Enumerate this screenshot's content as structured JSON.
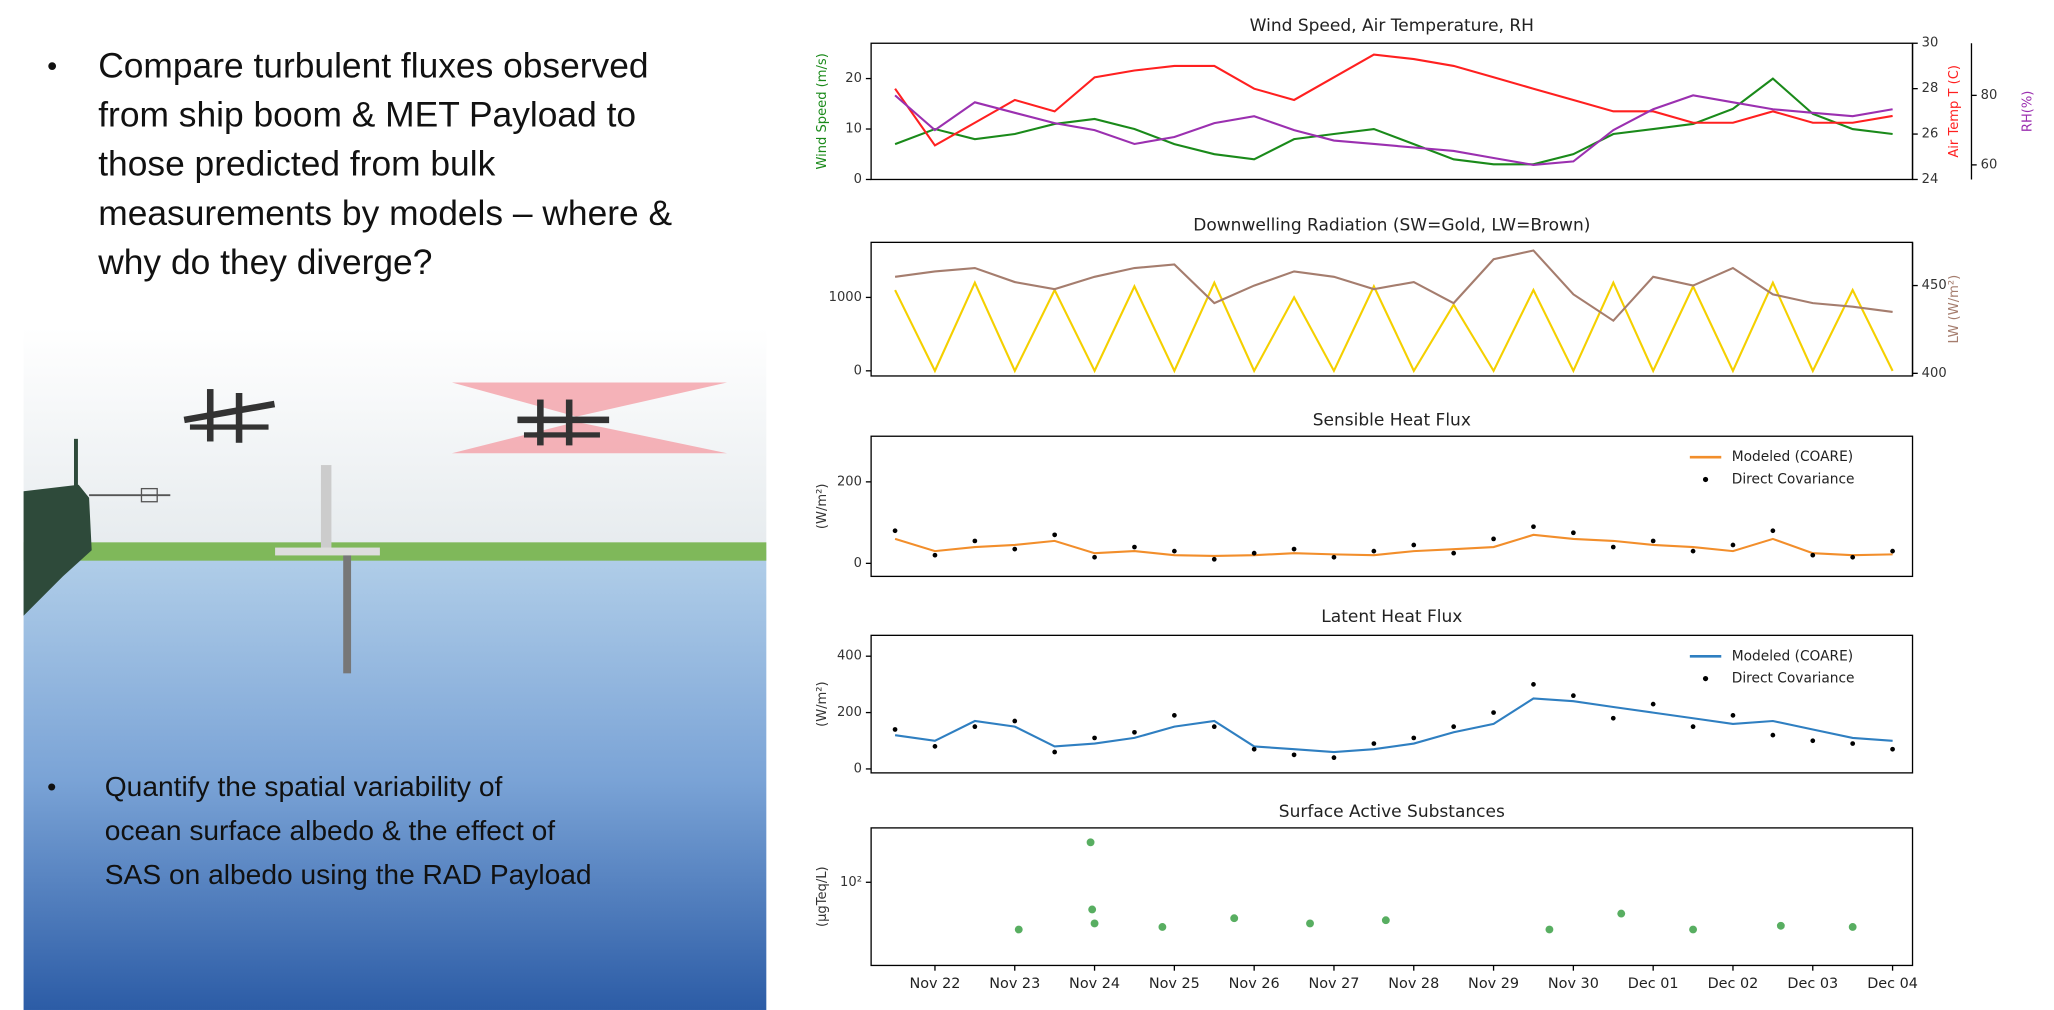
{
  "slide": {
    "bullets": [
      {
        "lines": [
          "Compare turbulent fluxes observed",
          "from ship boom & MET Payload to",
          "those predicted from bulk",
          "measurements by models – where &",
          "why do they diverge?"
        ]
      },
      {
        "lines": [
          "Quantify the spatial variability of",
          "ocean surface albedo & the effect of",
          "SAS on albedo using the RAD Payload"
        ]
      }
    ]
  },
  "chart_data": [
    {
      "type": "line",
      "title": "Wind Speed, Air Temperature, RH",
      "x": [
        -0.5,
        0,
        0.5,
        1,
        1.5,
        2,
        2.5,
        3,
        3.5,
        4,
        4.5,
        5,
        5.5,
        6,
        6.5,
        7,
        7.5,
        8,
        8.5,
        9,
        9.5,
        10,
        10.5,
        11,
        11.5,
        12
      ],
      "xlim": [
        -0.8,
        12.25
      ],
      "ylim": [
        0,
        27
      ],
      "yticks": [
        0,
        10,
        20
      ],
      "ylabel": "Wind Speed (m/s)",
      "y2lim": [
        24,
        30
      ],
      "y2ticks": [
        24,
        26,
        28,
        30
      ],
      "y2label": "Air Temp T (C)",
      "y3lim": [
        55.8,
        95
      ],
      "y3ticks": [
        60,
        80
      ],
      "y3label": "RH(%)",
      "series": [
        {
          "color": "#1a8a1a",
          "axis": "y",
          "values": [
            7,
            10,
            8,
            9,
            11,
            12,
            10,
            7,
            5,
            4,
            8,
            9,
            10,
            7,
            4,
            3,
            3,
            5,
            9,
            10,
            11,
            14,
            20,
            13,
            10,
            9
          ]
        },
        {
          "color": "#ff2020",
          "axis": "y2",
          "values": [
            28,
            25.5,
            26.5,
            27.5,
            27,
            28.5,
            28.8,
            29,
            29,
            28,
            27.5,
            28.5,
            29.5,
            29.3,
            29,
            28.5,
            28,
            27.5,
            27,
            27,
            26.5,
            26.5,
            27,
            26.5,
            26.5,
            26.8
          ]
        },
        {
          "color": "#9b30b0",
          "axis": "y3",
          "values": [
            80,
            70,
            78,
            75,
            72,
            70,
            66,
            68,
            72,
            74,
            70,
            67,
            66,
            65,
            64,
            62,
            60,
            61,
            70,
            76,
            80,
            78,
            76,
            75,
            74,
            76
          ]
        }
      ]
    },
    {
      "type": "line",
      "title": "Downwelling Radiation (SW=Gold, LW=Brown)",
      "x": [
        -0.5,
        0,
        0.5,
        1,
        1.5,
        2,
        2.5,
        3,
        3.5,
        4,
        4.5,
        5,
        5.5,
        6,
        6.5,
        7,
        7.5,
        8,
        8.5,
        9,
        9.5,
        10,
        10.5,
        11,
        11.5,
        12
      ],
      "xlim": [
        -0.8,
        12.25
      ],
      "ylim": [
        -70,
        1750
      ],
      "yticks": [
        0,
        1000
      ],
      "y2lim": [
        398.5,
        474.6
      ],
      "y2ticks": [
        400,
        450
      ],
      "y2label": "LW (W/m²)",
      "series": [
        {
          "color": "#f5d000",
          "axis": "y",
          "values": [
            1100,
            0,
            1200,
            0,
            1100,
            0,
            1150,
            0,
            1200,
            0,
            1000,
            0,
            1150,
            0,
            900,
            0,
            1100,
            0,
            1200,
            0,
            1150,
            0,
            1200,
            0,
            1100,
            0
          ]
        },
        {
          "color": "#a57d6e",
          "axis": "y2",
          "values": [
            455,
            458,
            460,
            452,
            448,
            455,
            460,
            462,
            440,
            450,
            458,
            455,
            448,
            452,
            440,
            465,
            470,
            445,
            430,
            455,
            450,
            460,
            445,
            440,
            438,
            435
          ]
        }
      ]
    },
    {
      "type": "line",
      "title": "Sensible Heat Flux",
      "x": [
        -0.5,
        0,
        0.5,
        1,
        1.5,
        2,
        2.5,
        3,
        3.5,
        4,
        4.5,
        5,
        5.5,
        6,
        6.5,
        7,
        7.5,
        8,
        8.5,
        9,
        9.5,
        10,
        10.5,
        11,
        11.5,
        12
      ],
      "xlim": [
        -0.8,
        12.25
      ],
      "ylim": [
        -32,
        312
      ],
      "yticks": [
        0,
        200
      ],
      "ylabel": "(W/m²)",
      "legend": "upper right",
      "series": [
        {
          "name": "Modeled (COARE)",
          "color": "#f28e2b",
          "style": "line",
          "values": [
            60,
            30,
            40,
            45,
            55,
            25,
            30,
            20,
            18,
            20,
            25,
            22,
            20,
            30,
            35,
            40,
            70,
            60,
            55,
            45,
            40,
            30,
            60,
            25,
            20,
            22
          ]
        },
        {
          "name": "Direct Covariance",
          "color": "#000000",
          "style": "points",
          "values": [
            80,
            20,
            55,
            35,
            70,
            15,
            40,
            30,
            10,
            25,
            35,
            15,
            30,
            45,
            25,
            60,
            90,
            75,
            40,
            55,
            30,
            45,
            80,
            20,
            15,
            30
          ]
        }
      ]
    },
    {
      "type": "line",
      "title": "Latent Heat Flux",
      "x": [
        -0.5,
        0,
        0.5,
        1,
        1.5,
        2,
        2.5,
        3,
        3.5,
        4,
        4.5,
        5,
        5.5,
        6,
        6.5,
        7,
        7.5,
        8,
        8.5,
        9,
        9.5,
        10,
        10.5,
        11,
        11.5,
        12
      ],
      "xlim": [
        -0.8,
        12.25
      ],
      "ylim": [
        -14,
        474
      ],
      "yticks": [
        0,
        200,
        400
      ],
      "ylabel": "(W/m²)",
      "legend": "upper right",
      "series": [
        {
          "name": "Modeled (COARE)",
          "color": "#2f7fc1",
          "style": "line",
          "values": [
            120,
            100,
            170,
            150,
            80,
            90,
            110,
            150,
            170,
            80,
            70,
            60,
            70,
            90,
            130,
            160,
            250,
            240,
            220,
            200,
            180,
            160,
            170,
            140,
            110,
            100
          ]
        },
        {
          "name": "Direct Covariance",
          "color": "#000000",
          "style": "points",
          "values": [
            140,
            80,
            150,
            170,
            60,
            110,
            130,
            190,
            150,
            70,
            50,
            40,
            90,
            110,
            150,
            200,
            300,
            260,
            180,
            230,
            150,
            190,
            120,
            100,
            90,
            70
          ]
        }
      ]
    },
    {
      "type": "scatter",
      "title": "Surface Active Substances",
      "x": [
        1.05,
        1.95,
        1.97,
        2.0,
        2.85,
        3.75,
        4.7,
        5.65,
        7.7,
        8.6,
        9.5,
        10.6,
        11.5
      ],
      "values": [
        30,
        277,
        50,
        35,
        32,
        40,
        35,
        38,
        30,
        45,
        30,
        33,
        32
      ],
      "color": "#2e9a3a",
      "xlim": [
        -0.8,
        12.25
      ],
      "log": true,
      "ylim": [
        12,
        400
      ],
      "yticks": [
        {
          "value": 100,
          "label": "10²"
        }
      ],
      "ylabel": "(µgTeq/L)",
      "xticks": [
        {
          "value": 0,
          "label": "Nov 22"
        },
        {
          "value": 1,
          "label": "Nov 23"
        },
        {
          "value": 2,
          "label": "Nov 24"
        },
        {
          "value": 3,
          "label": "Nov 25"
        },
        {
          "value": 4,
          "label": "Nov 26"
        },
        {
          "value": 5,
          "label": "Nov 27"
        },
        {
          "value": 6,
          "label": "Nov 28"
        },
        {
          "value": 7,
          "label": "Nov 29"
        },
        {
          "value": 8,
          "label": "Nov 30"
        },
        {
          "value": 9,
          "label": "Dec 01"
        },
        {
          "value": 10,
          "label": "Dec 02"
        },
        {
          "value": 11,
          "label": "Dec 03"
        },
        {
          "value": 12,
          "label": "Dec 04"
        }
      ]
    }
  ]
}
